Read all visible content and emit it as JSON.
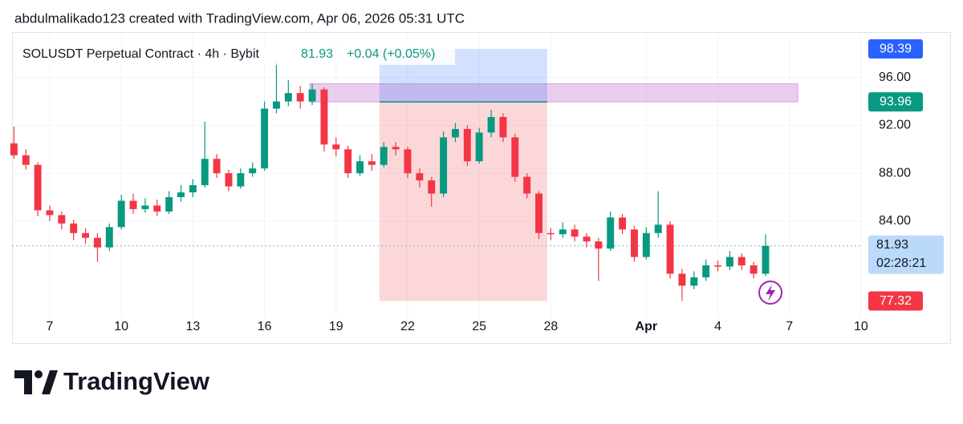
{
  "header": "abdulmalikado123 created with TradingView.com, Apr 06, 2026 05:31 UTC",
  "brand": "TradingView",
  "chart_data": {
    "type": "candlestick",
    "title": "SOLUSDT Perpetual Contract · 4h · Bybit",
    "last_price": 81.93,
    "change_label": "+0.04 (+0.05%)",
    "countdown": "02:28:21",
    "up_color": "#089981",
    "down_color": "#f23645",
    "grid": true,
    "xlim": [
      5.42,
      41.07
    ],
    "xticks": [
      7,
      10,
      13,
      16,
      19,
      22,
      25,
      28,
      {
        "value": 32,
        "label": "Apr"
      },
      {
        "value": 35,
        "label": "4"
      },
      {
        "value": 38,
        "label": "7"
      },
      {
        "value": 41,
        "label": "10"
      }
    ],
    "ylim": [
      75.95,
      99.8
    ],
    "yticks": [
      {
        "value": 84,
        "label": "84.00"
      },
      {
        "value": 88,
        "label": "88.00"
      },
      {
        "value": 92,
        "label": "92.00"
      },
      {
        "value": 96,
        "label": "96.00"
      }
    ],
    "candles": {
      "x": [
        5.5,
        6,
        6.5,
        7,
        7.5,
        8,
        8.5,
        9,
        9.5,
        10,
        10.5,
        11,
        11.5,
        12,
        12.5,
        13,
        13.5,
        14,
        14.5,
        15,
        15.5,
        16,
        16.5,
        17,
        17.5,
        18,
        18.5,
        19,
        19.5,
        20,
        20.5,
        21,
        21.5,
        22,
        22.5,
        23,
        23.5,
        24,
        24.5,
        25,
        25.5,
        26,
        26.5,
        27,
        27.5,
        28,
        28.5,
        29,
        29.5,
        30,
        30.5,
        31,
        31.5,
        32,
        32.5,
        33,
        33.5,
        34,
        34.5,
        35,
        35.5,
        36,
        36.5,
        37
      ],
      "open": [
        90.5,
        89.5,
        88.7,
        84.9,
        84.5,
        83.8,
        83.0,
        82.6,
        81.8,
        83.5,
        85.7,
        85.0,
        85.3,
        84.8,
        86.0,
        86.4,
        87.0,
        89.2,
        88.0,
        86.9,
        88.0,
        88.4,
        93.4,
        94.0,
        94.7,
        94.0,
        95.0,
        90.4,
        90.0,
        88.0,
        89.0,
        88.7,
        90.2,
        90.0,
        88.0,
        87.4,
        86.3,
        91.0,
        91.7,
        89.0,
        91.4,
        92.7,
        91.0,
        87.7,
        86.3,
        83.0,
        82.9,
        83.3,
        82.7,
        82.3,
        81.7,
        84.3,
        83.3,
        81.0,
        83.0,
        83.7,
        79.6,
        78.6,
        79.3,
        80.3,
        80.2,
        81.0,
        80.3,
        79.6
      ],
      "high": [
        91.9,
        90.0,
        88.9,
        85.3,
        84.8,
        84.1,
        83.4,
        83.0,
        83.8,
        86.2,
        86.3,
        85.9,
        85.8,
        86.5,
        87.0,
        87.5,
        92.3,
        89.6,
        88.3,
        88.4,
        88.9,
        94.0,
        97.5,
        95.8,
        95.3,
        95.5,
        95.2,
        91.0,
        90.3,
        89.5,
        89.6,
        90.6,
        90.6,
        90.2,
        88.4,
        87.7,
        91.5,
        92.2,
        92.0,
        91.8,
        93.3,
        93.0,
        91.3,
        88.0,
        86.5,
        83.4,
        83.9,
        83.7,
        83.0,
        82.6,
        84.8,
        84.6,
        83.6,
        83.5,
        86.5,
        84.0,
        80.0,
        79.8,
        80.8,
        80.7,
        81.5,
        81.3,
        80.6,
        82.9
      ],
      "low": [
        89.2,
        88.3,
        84.4,
        84.0,
        83.3,
        82.4,
        82.1,
        80.6,
        81.5,
        83.3,
        84.6,
        84.7,
        84.4,
        84.6,
        85.6,
        86.0,
        86.8,
        87.6,
        86.5,
        86.7,
        87.7,
        88.2,
        93.0,
        93.6,
        93.4,
        93.7,
        89.8,
        89.4,
        87.6,
        87.8,
        88.2,
        88.5,
        89.5,
        87.6,
        86.8,
        85.2,
        86.0,
        90.6,
        88.6,
        88.8,
        91.0,
        90.6,
        87.3,
        85.9,
        82.5,
        82.4,
        82.6,
        82.3,
        81.8,
        79.0,
        81.5,
        82.9,
        80.6,
        80.8,
        82.6,
        79.2,
        77.32,
        78.3,
        79.0,
        79.8,
        79.9,
        79.9,
        79.2,
        79.4
      ],
      "close": [
        89.5,
        88.7,
        84.9,
        84.5,
        83.8,
        83.0,
        82.6,
        81.8,
        83.5,
        85.7,
        85.0,
        85.3,
        84.8,
        86.0,
        86.4,
        87.0,
        89.2,
        88.0,
        86.9,
        88.0,
        88.4,
        93.4,
        94.0,
        94.7,
        94.0,
        95.0,
        90.4,
        90.0,
        88.0,
        89.0,
        88.7,
        90.2,
        90.0,
        88.0,
        87.4,
        86.3,
        91.0,
        91.7,
        89.0,
        91.4,
        92.7,
        91.0,
        87.7,
        86.3,
        83.0,
        82.9,
        83.3,
        82.7,
        82.3,
        81.7,
        84.3,
        83.3,
        81.0,
        83.0,
        83.7,
        79.6,
        78.6,
        79.3,
        80.3,
        80.2,
        81.0,
        80.3,
        79.6,
        81.93
      ]
    },
    "position": {
      "x_start": 20.82,
      "x_end": 27.85,
      "target": 98.39,
      "entry": 93.96,
      "stop": 77.32,
      "target_color": "#2962ff",
      "entry_color": "#089981",
      "stop_color": "#f23645"
    },
    "zone": {
      "x_start": 17.9,
      "x_end": 38.35,
      "top": 95.48,
      "bottom": 93.96,
      "color": "#ce93d8"
    }
  }
}
